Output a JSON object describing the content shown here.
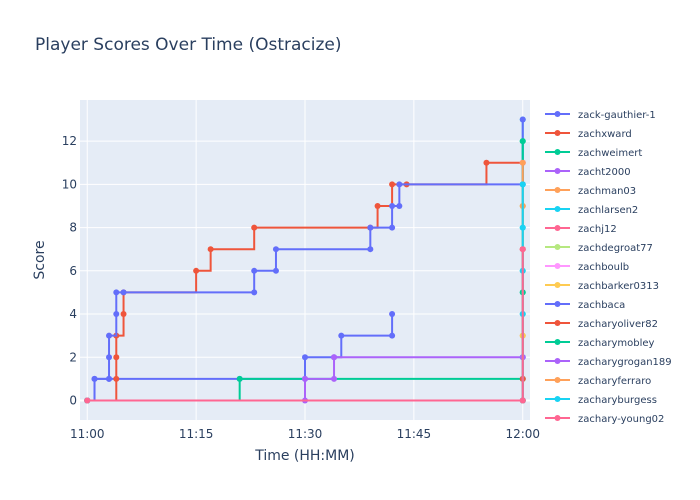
{
  "chart_data": {
    "type": "line",
    "line_shape": "step",
    "title": "Player Scores Over Time (Ostracize)",
    "xlabel": "Time (HH:MM)",
    "ylabel": "Score",
    "x_ticks": [
      "11:00",
      "11:15",
      "11:30",
      "11:45",
      "12:00"
    ],
    "x_range": [
      "10:59",
      "12:01"
    ],
    "y_ticks": [
      0,
      2,
      4,
      6,
      8,
      10,
      12
    ],
    "ylim": [
      -0.9,
      13.9
    ],
    "grid": true,
    "legend_position": "right",
    "series": [
      {
        "name": "zack-gauthier-1",
        "color": "#636efa",
        "points": [
          [
            "11:00",
            0
          ],
          [
            "11:01",
            1
          ],
          [
            "11:03",
            1
          ],
          [
            "11:21",
            1
          ],
          [
            "11:30",
            1
          ],
          [
            "11:30",
            2
          ],
          [
            "11:34",
            2
          ],
          [
            "11:35",
            3
          ],
          [
            "11:42",
            3
          ],
          [
            "11:42",
            4
          ]
        ]
      },
      {
        "name": "zachxward",
        "color": "#ef553b",
        "points": [
          [
            "11:00",
            0
          ],
          [
            "11:04",
            1
          ],
          [
            "11:04",
            2
          ],
          [
            "11:04",
            3
          ],
          [
            "11:05",
            4
          ],
          [
            "11:05",
            5
          ],
          [
            "11:15",
            6
          ],
          [
            "11:17",
            7
          ],
          [
            "11:23",
            8
          ],
          [
            "11:39",
            8
          ],
          [
            "11:40",
            9
          ],
          [
            "11:42",
            10
          ],
          [
            "11:44",
            10
          ],
          [
            "11:55",
            11
          ],
          [
            "12:00",
            11
          ],
          [
            "12:00",
            1
          ]
        ]
      },
      {
        "name": "zachweimert",
        "color": "#00cc96",
        "points": [
          [
            "11:00",
            0
          ],
          [
            "11:21",
            1
          ],
          [
            "12:00",
            1
          ],
          [
            "12:00",
            5
          ],
          [
            "12:00",
            12
          ]
        ]
      },
      {
        "name": "zacht2000",
        "color": "#ab63fa",
        "points": [
          [
            "11:00",
            0
          ],
          [
            "11:30",
            0
          ],
          [
            "11:30",
            1
          ],
          [
            "11:34",
            1
          ],
          [
            "11:34",
            2
          ],
          [
            "12:00",
            2
          ]
        ]
      },
      {
        "name": "zachman03",
        "color": "#ffa15a",
        "points": [
          [
            "11:00",
            0
          ],
          [
            "12:00",
            0
          ],
          [
            "12:00",
            3
          ],
          [
            "12:00",
            9
          ]
        ]
      },
      {
        "name": "zachlarsen2",
        "color": "#19d3f3",
        "points": [
          [
            "11:00",
            0
          ],
          [
            "12:00",
            0
          ],
          [
            "12:00",
            2
          ],
          [
            "12:00",
            4
          ],
          [
            "12:00",
            6
          ],
          [
            "12:00",
            8
          ],
          [
            "12:00",
            10
          ],
          [
            "12:00",
            13
          ]
        ]
      },
      {
        "name": "zachj12",
        "color": "#ff6692",
        "points": [
          [
            "11:00",
            0
          ],
          [
            "12:00",
            0
          ],
          [
            "12:00",
            7
          ]
        ]
      },
      {
        "name": "zachdegroat77",
        "color": "#b6e880",
        "points": [
          [
            "11:00",
            0
          ],
          [
            "12:00",
            0
          ],
          [
            "12:00",
            9
          ]
        ]
      },
      {
        "name": "zachboulb",
        "color": "#ff97ff",
        "points": [
          [
            "11:00",
            0
          ],
          [
            "12:00",
            0
          ],
          [
            "12:00",
            11
          ]
        ]
      },
      {
        "name": "zachbarker0313",
        "color": "#fecb52",
        "points": [
          [
            "11:00",
            0
          ],
          [
            "12:00",
            0
          ],
          [
            "12:00",
            3
          ]
        ]
      },
      {
        "name": "zachbaca",
        "color": "#636efa",
        "points": [
          [
            "11:00",
            0
          ],
          [
            "11:01",
            1
          ],
          [
            "11:03",
            1
          ],
          [
            "11:03",
            2
          ],
          [
            "11:03",
            3
          ],
          [
            "11:04",
            4
          ],
          [
            "11:04",
            5
          ],
          [
            "11:05",
            5
          ],
          [
            "11:23",
            5
          ],
          [
            "11:23",
            6
          ],
          [
            "11:26",
            6
          ],
          [
            "11:26",
            7
          ],
          [
            "11:39",
            7
          ],
          [
            "11:39",
            8
          ],
          [
            "11:42",
            8
          ],
          [
            "11:42",
            9
          ],
          [
            "11:43",
            9
          ],
          [
            "11:43",
            10
          ],
          [
            "12:00",
            10
          ],
          [
            "12:00",
            13
          ]
        ]
      },
      {
        "name": "zacharyoliver82",
        "color": "#ef553b",
        "points": [
          [
            "11:00",
            0
          ],
          [
            "12:00",
            0
          ],
          [
            "12:00",
            1
          ],
          [
            "12:00",
            7
          ]
        ]
      },
      {
        "name": "zacharymobley",
        "color": "#00cc96",
        "points": [
          [
            "11:00",
            0
          ],
          [
            "12:00",
            0
          ],
          [
            "12:00",
            5
          ],
          [
            "12:00",
            12
          ]
        ]
      },
      {
        "name": "zacharygrogan189",
        "color": "#ab63fa",
        "points": [
          [
            "11:00",
            0
          ],
          [
            "12:00",
            0
          ],
          [
            "12:00",
            2
          ]
        ]
      },
      {
        "name": "zacharyferraro",
        "color": "#ffa15a",
        "points": [
          [
            "11:00",
            0
          ],
          [
            "12:00",
            0
          ],
          [
            "12:00",
            9
          ],
          [
            "12:00",
            11
          ]
        ]
      },
      {
        "name": "zacharyburgess",
        "color": "#19d3f3",
        "points": [
          [
            "11:00",
            0
          ],
          [
            "12:00",
            0
          ],
          [
            "12:00",
            4
          ],
          [
            "12:00",
            6
          ],
          [
            "12:00",
            8
          ],
          [
            "12:00",
            10
          ]
        ]
      },
      {
        "name": "zachary-young02",
        "color": "#ff6692",
        "points": [
          [
            "11:00",
            0
          ],
          [
            "12:00",
            0
          ],
          [
            "12:00",
            7
          ]
        ]
      }
    ]
  }
}
